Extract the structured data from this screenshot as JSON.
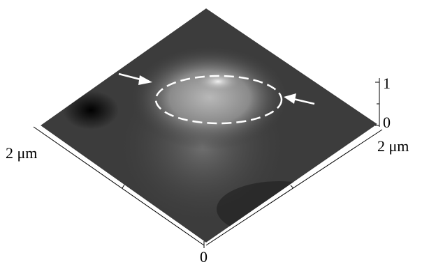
{
  "axes": {
    "left_label": "2 μm",
    "right_label": "2 μm",
    "origin_label": 0,
    "z_ticks": [
      1,
      0
    ]
  }
}
